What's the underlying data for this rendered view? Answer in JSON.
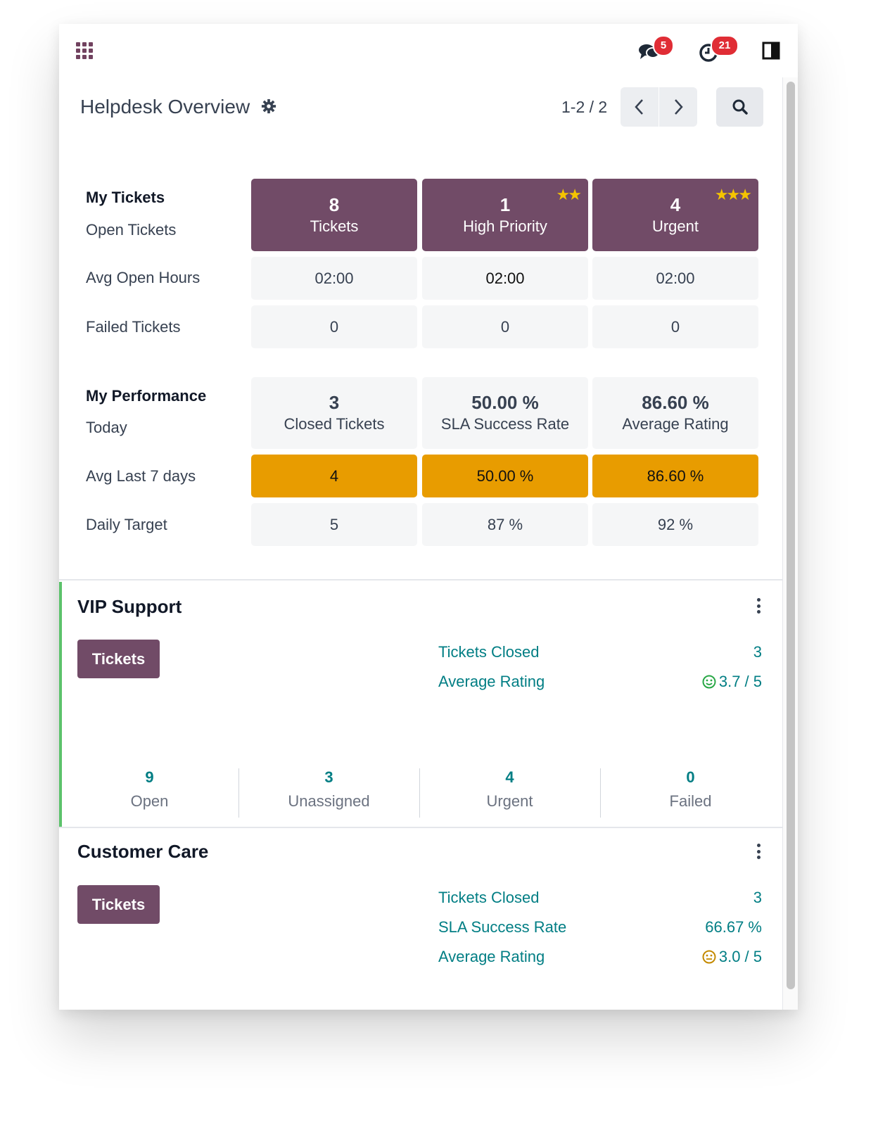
{
  "topbar": {
    "messages_badge": "5",
    "activities_badge": "21"
  },
  "control_panel": {
    "title": "Helpdesk Overview",
    "pager_value": "1-2 / 2"
  },
  "dashboard": {
    "my_tickets": {
      "heading": "My Tickets",
      "open_label": "Open Tickets",
      "avg_open_label": "Avg Open Hours",
      "failed_label": "Failed Tickets",
      "columns": [
        {
          "count": "8",
          "label": "Tickets",
          "stars": "",
          "avg_open": "02:00",
          "failed": "0"
        },
        {
          "count": "1",
          "label": "High Priority",
          "stars": "★★",
          "avg_open": "02:00",
          "failed": "0"
        },
        {
          "count": "4",
          "label": "Urgent",
          "stars": "★★★",
          "avg_open": "02:00",
          "failed": "0"
        }
      ]
    },
    "my_performance": {
      "heading": "My Performance",
      "today_label": "Today",
      "avg7_label": "Avg Last 7 days",
      "target_label": "Daily Target",
      "columns": [
        {
          "value": "3",
          "label": "Closed Tickets",
          "avg7": "4",
          "target": "5"
        },
        {
          "value": "50.00 %",
          "label": "SLA Success Rate",
          "avg7": "50.00 %",
          "target": "87 %"
        },
        {
          "value": "86.60 %",
          "label": "Average Rating",
          "avg7": "86.60 %",
          "target": "92 %"
        }
      ]
    }
  },
  "teams": [
    {
      "name": "VIP Support",
      "color": "#5cc26b",
      "button": "Tickets",
      "stats": [
        {
          "label": "Tickets Closed",
          "value": "3"
        },
        {
          "label": "Average Rating",
          "value": "3.7 / 5",
          "face": "happy"
        }
      ],
      "footer": [
        {
          "value": "9",
          "label": "Open"
        },
        {
          "value": "3",
          "label": "Unassigned"
        },
        {
          "value": "4",
          "label": "Urgent"
        },
        {
          "value": "0",
          "label": "Failed"
        }
      ]
    },
    {
      "name": "Customer Care",
      "button": "Tickets",
      "stats": [
        {
          "label": "Tickets Closed",
          "value": "3"
        },
        {
          "label": "SLA Success Rate",
          "value": "66.67 %"
        },
        {
          "label": "Average Rating",
          "value": "3.0 / 5",
          "face": "neutral"
        }
      ]
    }
  ],
  "colors": {
    "primary": "#714b67",
    "orange": "#e89c00",
    "teal": "#017e84",
    "badge": "#e02d35"
  }
}
